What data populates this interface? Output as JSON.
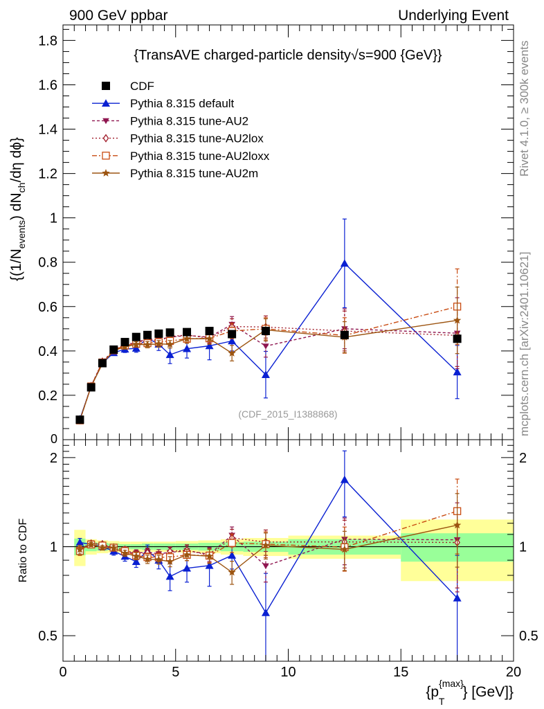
{
  "header": {
    "left": "900 GeV ppbar",
    "right": "Underlying Event"
  },
  "side_labels": {
    "rivet": "Rivet 4.1.0, ≥ 300k events",
    "mcplots": "mcplots.cern.ch [arXiv:2401.10621]"
  },
  "chart_data": {
    "type": "line",
    "title": "{TransAVE charged-particle density√s=900 {GeV}}",
    "analysis_label": "(CDF_2015_I1388868)",
    "xlabel_main": "{p",
    "xlabel_sup": "{max}",
    "xlabel_sub": "T",
    "xlabel_end": "} [GeV]}",
    "ylabel_main": "{(1/N",
    "ylabel_sub1": "events",
    "ylabel_mid": ") dN",
    "ylabel_sub2": "ch",
    "ylabel_end": "/dη dϕ}",
    "ratio_ylabel": "Ratio to CDF",
    "xlim": [
      0,
      20
    ],
    "ylim": [
      0,
      1.87
    ],
    "ratio_ylim": [
      0.41,
      2.3
    ],
    "x_ticks": [
      0,
      5,
      10,
      15,
      20
    ],
    "x_tick_labels": [
      "0",
      "5",
      "10",
      "15",
      "20"
    ],
    "y_ticks": [
      0.2,
      0.4,
      0.6,
      0.8,
      1.0,
      1.2,
      1.4,
      1.6,
      1.8
    ],
    "y_tick_labels": [
      "0.2",
      "0.4",
      "0.6",
      "0.8",
      "1",
      "1.2",
      "1.4",
      "1.6",
      "1.8"
    ],
    "y_zero_label": "0",
    "ratio_ticks": [
      0.5,
      1,
      2
    ],
    "ratio_tick_labels": [
      "0.5",
      "1",
      "2"
    ],
    "data": {
      "name": "CDF",
      "x": [
        0.75,
        1.25,
        1.75,
        2.25,
        2.75,
        3.25,
        3.75,
        4.25,
        4.75,
        5.5,
        6.5,
        7.5,
        9.0,
        12.5,
        17.5
      ],
      "xlo": [
        0.5,
        1.0,
        1.5,
        2.0,
        2.5,
        3.0,
        3.5,
        4.0,
        4.5,
        5.0,
        6.0,
        7.0,
        8.0,
        10.0,
        15.0
      ],
      "xhi": [
        1.0,
        1.5,
        2.0,
        2.5,
        3.0,
        3.5,
        4.0,
        4.5,
        5.0,
        6.0,
        7.0,
        8.0,
        10.0,
        15.0,
        20.0
      ],
      "y": [
        0.09,
        0.236,
        0.345,
        0.406,
        0.44,
        0.463,
        0.472,
        0.478,
        0.483,
        0.485,
        0.49,
        0.476,
        0.49,
        0.472,
        0.455
      ],
      "band_inner": [
        0.065,
        0.035,
        0.03,
        0.025,
        0.02,
        0.02,
        0.025,
        0.025,
        0.025,
        0.025,
        0.03,
        0.035,
        0.04,
        0.06,
        0.11
      ],
      "band_outer": [
        0.14,
        0.06,
        0.05,
        0.045,
        0.04,
        0.04,
        0.04,
        0.04,
        0.04,
        0.045,
        0.05,
        0.06,
        0.07,
        0.09,
        0.235
      ]
    },
    "series": [
      {
        "name": "Pythia 8.315 default",
        "color": "#0a20d2",
        "dash": "",
        "marker": "triangle-up",
        "y": [
          0.093,
          0.24,
          0.345,
          0.392,
          0.408,
          0.412,
          0.458,
          0.43,
          0.383,
          0.41,
          0.423,
          0.445,
          0.293,
          0.795,
          0.305
        ],
        "err": [
          0.003,
          0.005,
          0.008,
          0.012,
          0.015,
          0.018,
          0.02,
          0.028,
          0.04,
          0.042,
          0.063,
          0.045,
          0.105,
          0.2,
          0.12
        ]
      },
      {
        "name": "Pythia 8.315 tune-AU2",
        "color": "#8f1650",
        "dash": "4,3",
        "marker": "triangle-down",
        "y": [
          0.088,
          0.243,
          0.35,
          0.4,
          0.422,
          0.44,
          0.453,
          0.452,
          0.462,
          0.47,
          0.462,
          0.52,
          0.422,
          0.5,
          0.48
        ],
        "err": [
          0.003,
          0.004,
          0.006,
          0.008,
          0.01,
          0.012,
          0.014,
          0.015,
          0.017,
          0.02,
          0.025,
          0.035,
          0.05,
          0.09,
          0.16
        ]
      },
      {
        "name": "Pythia 8.315 tune-AU2lox",
        "color": "#a01a28",
        "dash": "2,3",
        "marker": "diamond-open",
        "y": [
          0.088,
          0.242,
          0.352,
          0.404,
          0.43,
          0.437,
          0.45,
          0.445,
          0.465,
          0.472,
          0.458,
          0.51,
          0.508,
          0.49,
          0.47
        ],
        "err": [
          0.003,
          0.004,
          0.006,
          0.008,
          0.01,
          0.012,
          0.014,
          0.015,
          0.017,
          0.02,
          0.025,
          0.035,
          0.05,
          0.09,
          0.14
        ]
      },
      {
        "name": "Pythia 8.315 tune-AU2loxx",
        "color": "#c84a10",
        "dash": "7,3,2,3",
        "marker": "square-open",
        "y": [
          0.087,
          0.24,
          0.348,
          0.403,
          0.425,
          0.432,
          0.435,
          0.44,
          0.445,
          0.455,
          0.457,
          0.49,
          0.5,
          0.47,
          0.6
        ],
        "err": [
          0.003,
          0.004,
          0.006,
          0.008,
          0.01,
          0.012,
          0.014,
          0.015,
          0.017,
          0.02,
          0.025,
          0.035,
          0.05,
          0.08,
          0.17
        ]
      },
      {
        "name": "Pythia 8.315 tune-AU2m",
        "color": "#9c5410",
        "dash": "",
        "marker": "star",
        "y": [
          0.088,
          0.24,
          0.342,
          0.402,
          0.418,
          0.43,
          0.428,
          0.432,
          0.43,
          0.455,
          0.455,
          0.39,
          0.495,
          0.462,
          0.538
        ],
        "err": [
          0.003,
          0.004,
          0.006,
          0.008,
          0.01,
          0.012,
          0.014,
          0.015,
          0.017,
          0.02,
          0.025,
          0.035,
          0.05,
          0.07,
          0.15
        ]
      }
    ]
  }
}
